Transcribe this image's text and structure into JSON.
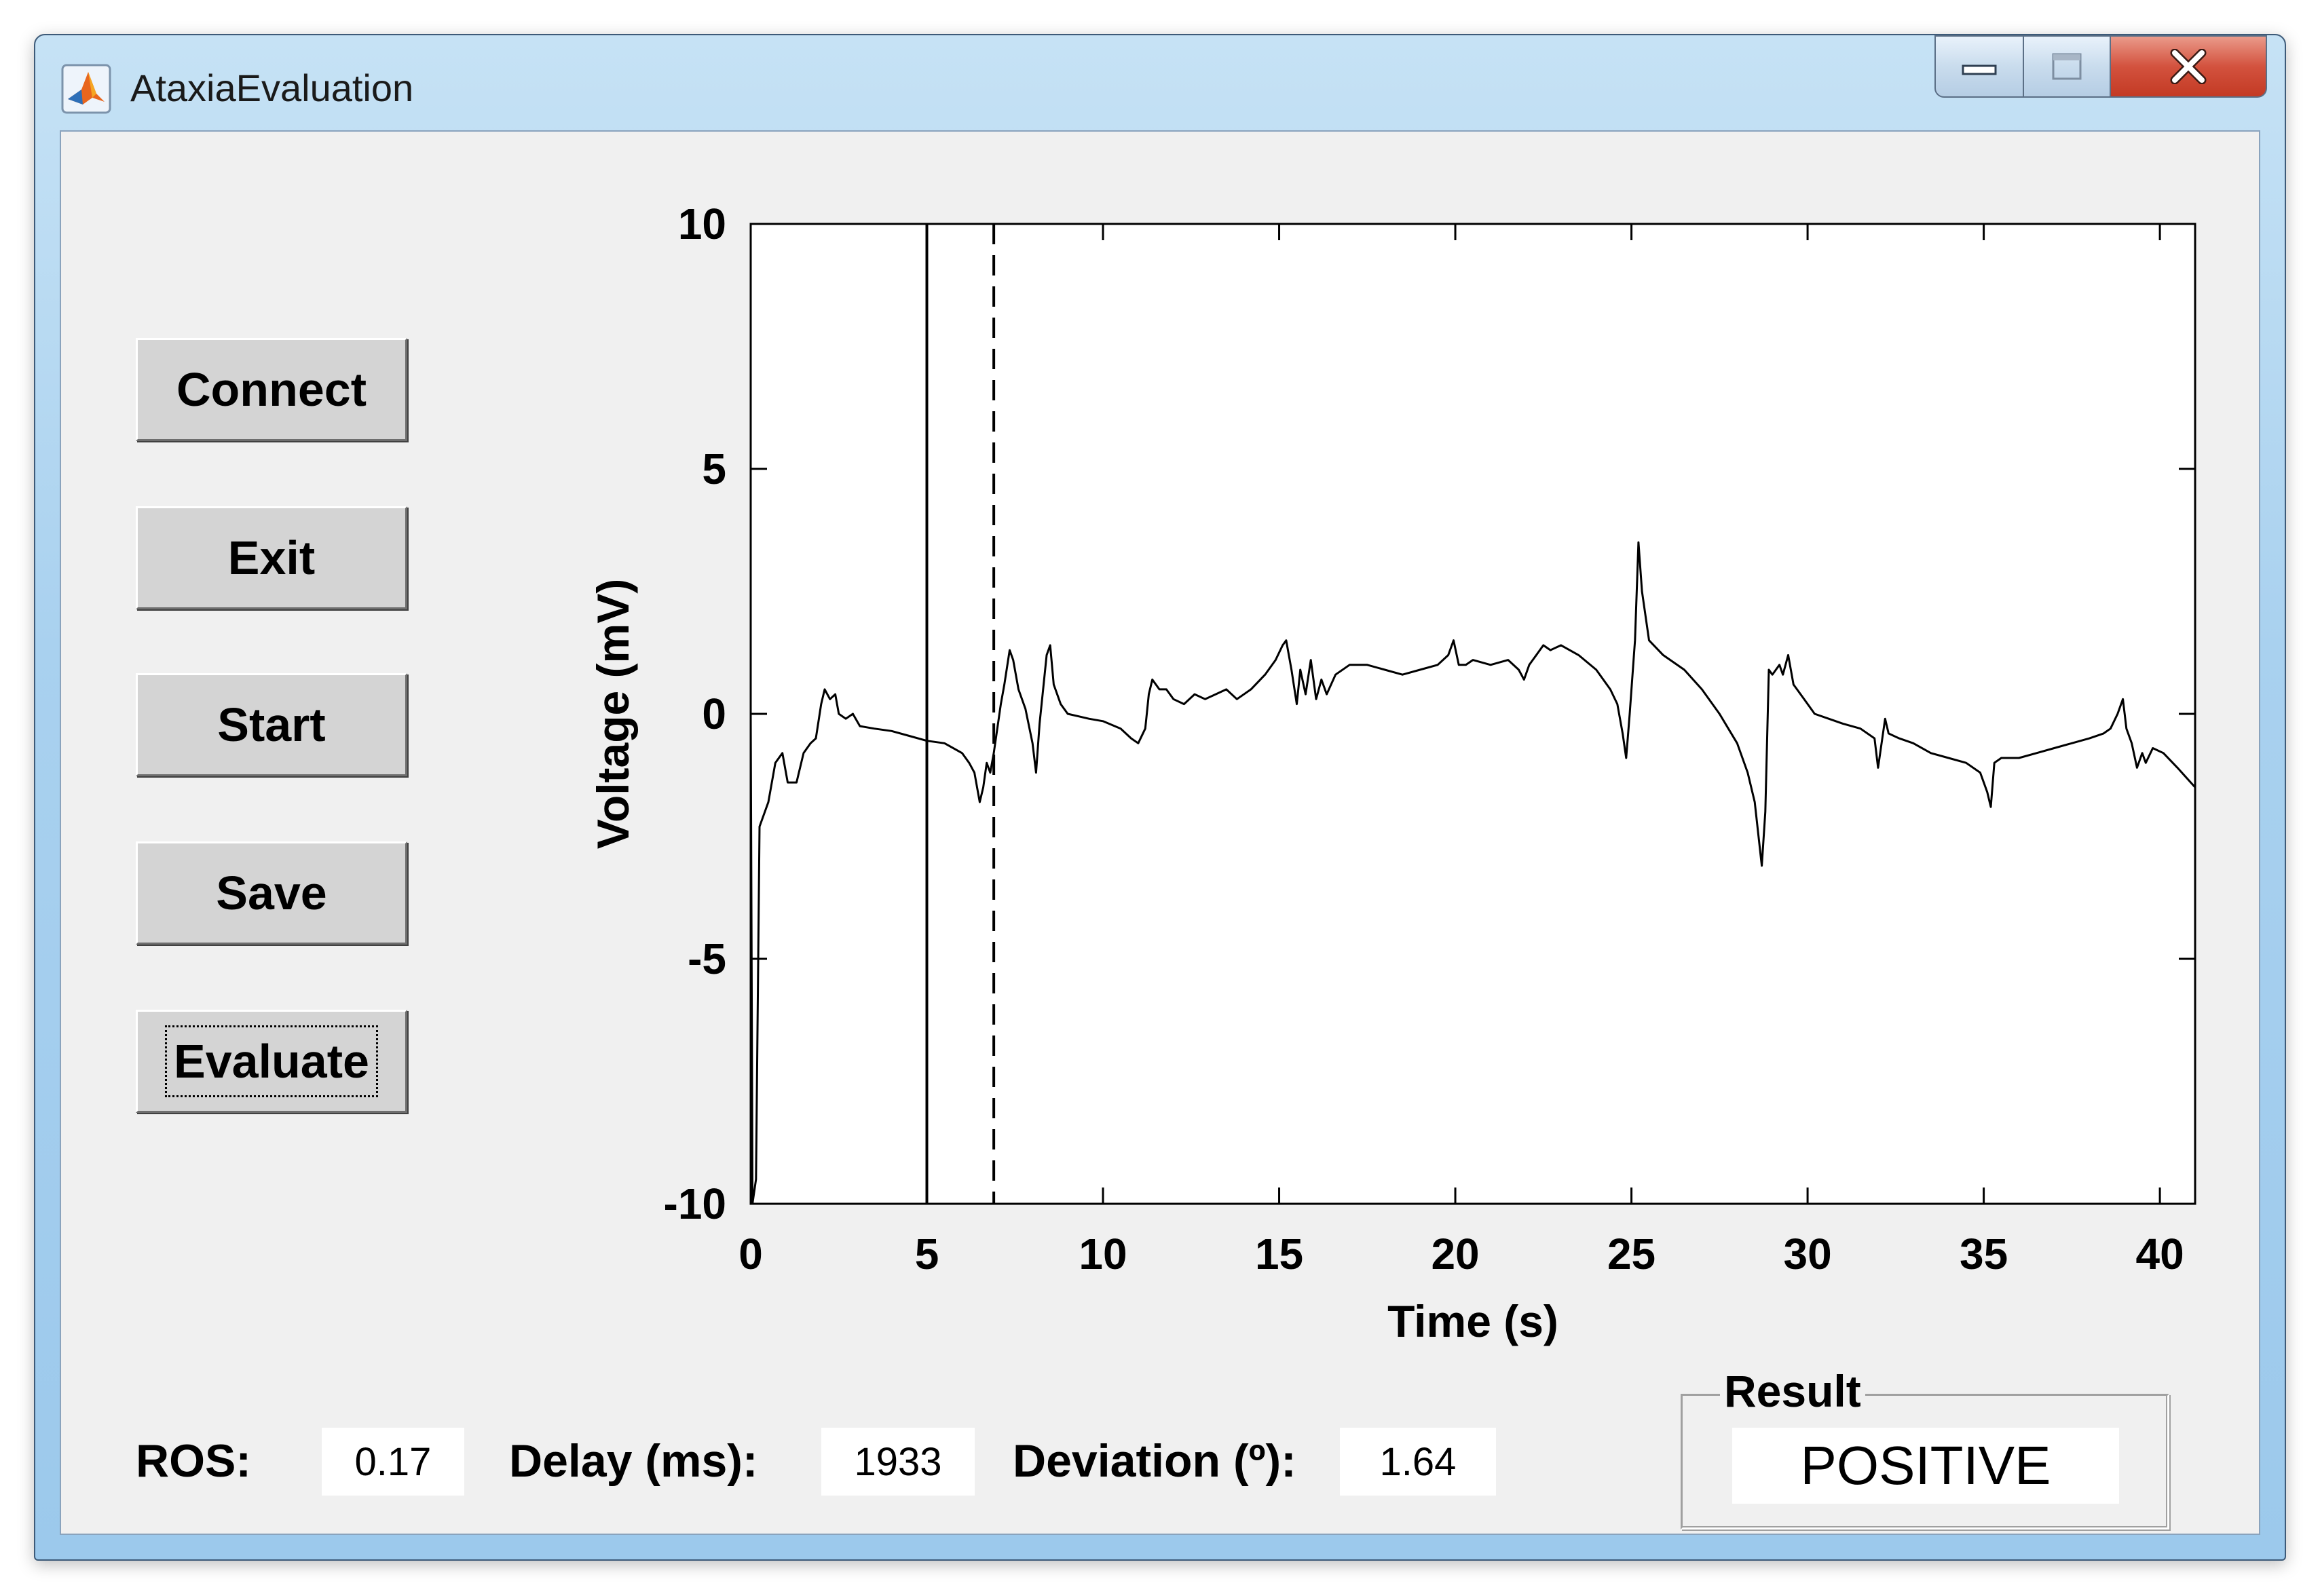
{
  "window": {
    "title": "AtaxiaEvaluation"
  },
  "icons": {
    "app": "matlab-icon",
    "minimize": "minimize-icon",
    "maximize": "maximize-icon",
    "close": "close-icon"
  },
  "buttons": {
    "connect": "Connect",
    "exit": "Exit",
    "start": "Start",
    "save": "Save",
    "evaluate": "Evaluate"
  },
  "readouts": {
    "ros_label": "ROS:",
    "ros_value": "0.17",
    "delay_label": "Delay (ms):",
    "delay_value": "1933",
    "deviation_label": "Deviation (º):",
    "deviation_value": "1.64"
  },
  "result": {
    "title": "Result",
    "value": "POSITIVE"
  },
  "chart_data": {
    "type": "line",
    "title": "",
    "xlabel": "Time (s)",
    "ylabel": "Voltage (mV)",
    "xlim": [
      0,
      41
    ],
    "ylim": [
      -10,
      10
    ],
    "xticks": [
      0,
      5,
      10,
      15,
      20,
      25,
      30,
      35,
      40
    ],
    "yticks": [
      -10,
      -5,
      0,
      5,
      10
    ],
    "grid": false,
    "legend": "none",
    "markers": [
      {
        "x": 5.0,
        "style": "solid"
      },
      {
        "x": 6.9,
        "style": "dashed"
      }
    ],
    "series": [
      {
        "color": "#000000",
        "points": [
          [
            0.0,
            0.0
          ],
          [
            0.05,
            -10.0
          ],
          [
            0.15,
            -9.5
          ],
          [
            0.25,
            -2.3
          ],
          [
            0.5,
            -1.8
          ],
          [
            0.7,
            -1.0
          ],
          [
            0.9,
            -0.8
          ],
          [
            1.05,
            -1.4
          ],
          [
            1.3,
            -1.4
          ],
          [
            1.5,
            -0.8
          ],
          [
            1.7,
            -0.6
          ],
          [
            1.85,
            -0.5
          ],
          [
            2.0,
            0.2
          ],
          [
            2.1,
            0.5
          ],
          [
            2.25,
            0.3
          ],
          [
            2.4,
            0.4
          ],
          [
            2.5,
            0.0
          ],
          [
            2.7,
            -0.1
          ],
          [
            2.9,
            0.0
          ],
          [
            3.1,
            -0.25
          ],
          [
            3.5,
            -0.3
          ],
          [
            4.0,
            -0.35
          ],
          [
            4.5,
            -0.45
          ],
          [
            5.0,
            -0.55
          ],
          [
            5.5,
            -0.6
          ],
          [
            6.0,
            -0.8
          ],
          [
            6.2,
            -1.0
          ],
          [
            6.35,
            -1.2
          ],
          [
            6.5,
            -1.8
          ],
          [
            6.6,
            -1.5
          ],
          [
            6.7,
            -1.0
          ],
          [
            6.8,
            -1.2
          ],
          [
            6.9,
            -0.8
          ],
          [
            7.0,
            -0.3
          ],
          [
            7.1,
            0.2
          ],
          [
            7.2,
            0.6
          ],
          [
            7.35,
            1.3
          ],
          [
            7.45,
            1.1
          ],
          [
            7.6,
            0.5
          ],
          [
            7.8,
            0.1
          ],
          [
            8.0,
            -0.6
          ],
          [
            8.1,
            -1.2
          ],
          [
            8.2,
            -0.2
          ],
          [
            8.4,
            1.2
          ],
          [
            8.5,
            1.4
          ],
          [
            8.6,
            0.6
          ],
          [
            8.8,
            0.2
          ],
          [
            9.0,
            0.0
          ],
          [
            9.3,
            -0.05
          ],
          [
            9.6,
            -0.1
          ],
          [
            10.0,
            -0.15
          ],
          [
            10.5,
            -0.3
          ],
          [
            10.8,
            -0.5
          ],
          [
            11.0,
            -0.6
          ],
          [
            11.2,
            -0.3
          ],
          [
            11.3,
            0.4
          ],
          [
            11.4,
            0.7
          ],
          [
            11.6,
            0.5
          ],
          [
            11.8,
            0.5
          ],
          [
            12.0,
            0.3
          ],
          [
            12.3,
            0.2
          ],
          [
            12.6,
            0.4
          ],
          [
            12.9,
            0.3
          ],
          [
            13.2,
            0.4
          ],
          [
            13.5,
            0.5
          ],
          [
            13.8,
            0.3
          ],
          [
            14.2,
            0.5
          ],
          [
            14.6,
            0.8
          ],
          [
            14.9,
            1.1
          ],
          [
            15.1,
            1.4
          ],
          [
            15.2,
            1.5
          ],
          [
            15.35,
            0.9
          ],
          [
            15.5,
            0.2
          ],
          [
            15.6,
            0.9
          ],
          [
            15.75,
            0.4
          ],
          [
            15.9,
            1.1
          ],
          [
            16.05,
            0.3
          ],
          [
            16.2,
            0.7
          ],
          [
            16.35,
            0.4
          ],
          [
            16.6,
            0.8
          ],
          [
            17.0,
            1.0
          ],
          [
            17.5,
            1.0
          ],
          [
            18.0,
            0.9
          ],
          [
            18.5,
            0.8
          ],
          [
            19.0,
            0.9
          ],
          [
            19.5,
            1.0
          ],
          [
            19.8,
            1.2
          ],
          [
            19.95,
            1.5
          ],
          [
            20.1,
            1.0
          ],
          [
            20.3,
            1.0
          ],
          [
            20.5,
            1.1
          ],
          [
            21.0,
            1.0
          ],
          [
            21.5,
            1.1
          ],
          [
            21.8,
            0.9
          ],
          [
            21.95,
            0.7
          ],
          [
            22.1,
            1.0
          ],
          [
            22.3,
            1.2
          ],
          [
            22.5,
            1.4
          ],
          [
            22.7,
            1.3
          ],
          [
            23.0,
            1.4
          ],
          [
            23.5,
            1.2
          ],
          [
            24.0,
            0.9
          ],
          [
            24.4,
            0.5
          ],
          [
            24.6,
            0.2
          ],
          [
            24.75,
            -0.4
          ],
          [
            24.85,
            -0.9
          ],
          [
            24.95,
            0.0
          ],
          [
            25.1,
            1.5
          ],
          [
            25.2,
            3.5
          ],
          [
            25.3,
            2.5
          ],
          [
            25.5,
            1.5
          ],
          [
            25.9,
            1.2
          ],
          [
            26.5,
            0.9
          ],
          [
            27.0,
            0.5
          ],
          [
            27.5,
            0.0
          ],
          [
            28.0,
            -0.6
          ],
          [
            28.3,
            -1.2
          ],
          [
            28.5,
            -1.8
          ],
          [
            28.7,
            -3.1
          ],
          [
            28.8,
            -2.0
          ],
          [
            28.9,
            0.9
          ],
          [
            29.0,
            0.8
          ],
          [
            29.2,
            1.0
          ],
          [
            29.3,
            0.8
          ],
          [
            29.45,
            1.2
          ],
          [
            29.6,
            0.6
          ],
          [
            29.9,
            0.3
          ],
          [
            30.2,
            0.0
          ],
          [
            30.6,
            -0.1
          ],
          [
            31.0,
            -0.2
          ],
          [
            31.5,
            -0.3
          ],
          [
            31.9,
            -0.5
          ],
          [
            32.0,
            -1.1
          ],
          [
            32.1,
            -0.6
          ],
          [
            32.2,
            -0.1
          ],
          [
            32.3,
            -0.4
          ],
          [
            32.6,
            -0.5
          ],
          [
            33.0,
            -0.6
          ],
          [
            33.5,
            -0.8
          ],
          [
            34.0,
            -0.9
          ],
          [
            34.5,
            -1.0
          ],
          [
            34.9,
            -1.2
          ],
          [
            35.1,
            -1.6
          ],
          [
            35.2,
            -1.9
          ],
          [
            35.3,
            -1.0
          ],
          [
            35.5,
            -0.9
          ],
          [
            36.0,
            -0.9
          ],
          [
            36.5,
            -0.8
          ],
          [
            37.0,
            -0.7
          ],
          [
            37.5,
            -0.6
          ],
          [
            38.0,
            -0.5
          ],
          [
            38.4,
            -0.4
          ],
          [
            38.6,
            -0.3
          ],
          [
            38.8,
            0.0
          ],
          [
            38.95,
            0.3
          ],
          [
            39.05,
            -0.3
          ],
          [
            39.2,
            -0.6
          ],
          [
            39.35,
            -1.1
          ],
          [
            39.5,
            -0.8
          ],
          [
            39.6,
            -1.0
          ],
          [
            39.8,
            -0.7
          ],
          [
            40.1,
            -0.8
          ],
          [
            40.5,
            -1.1
          ],
          [
            41.0,
            -1.5
          ]
        ]
      }
    ]
  }
}
